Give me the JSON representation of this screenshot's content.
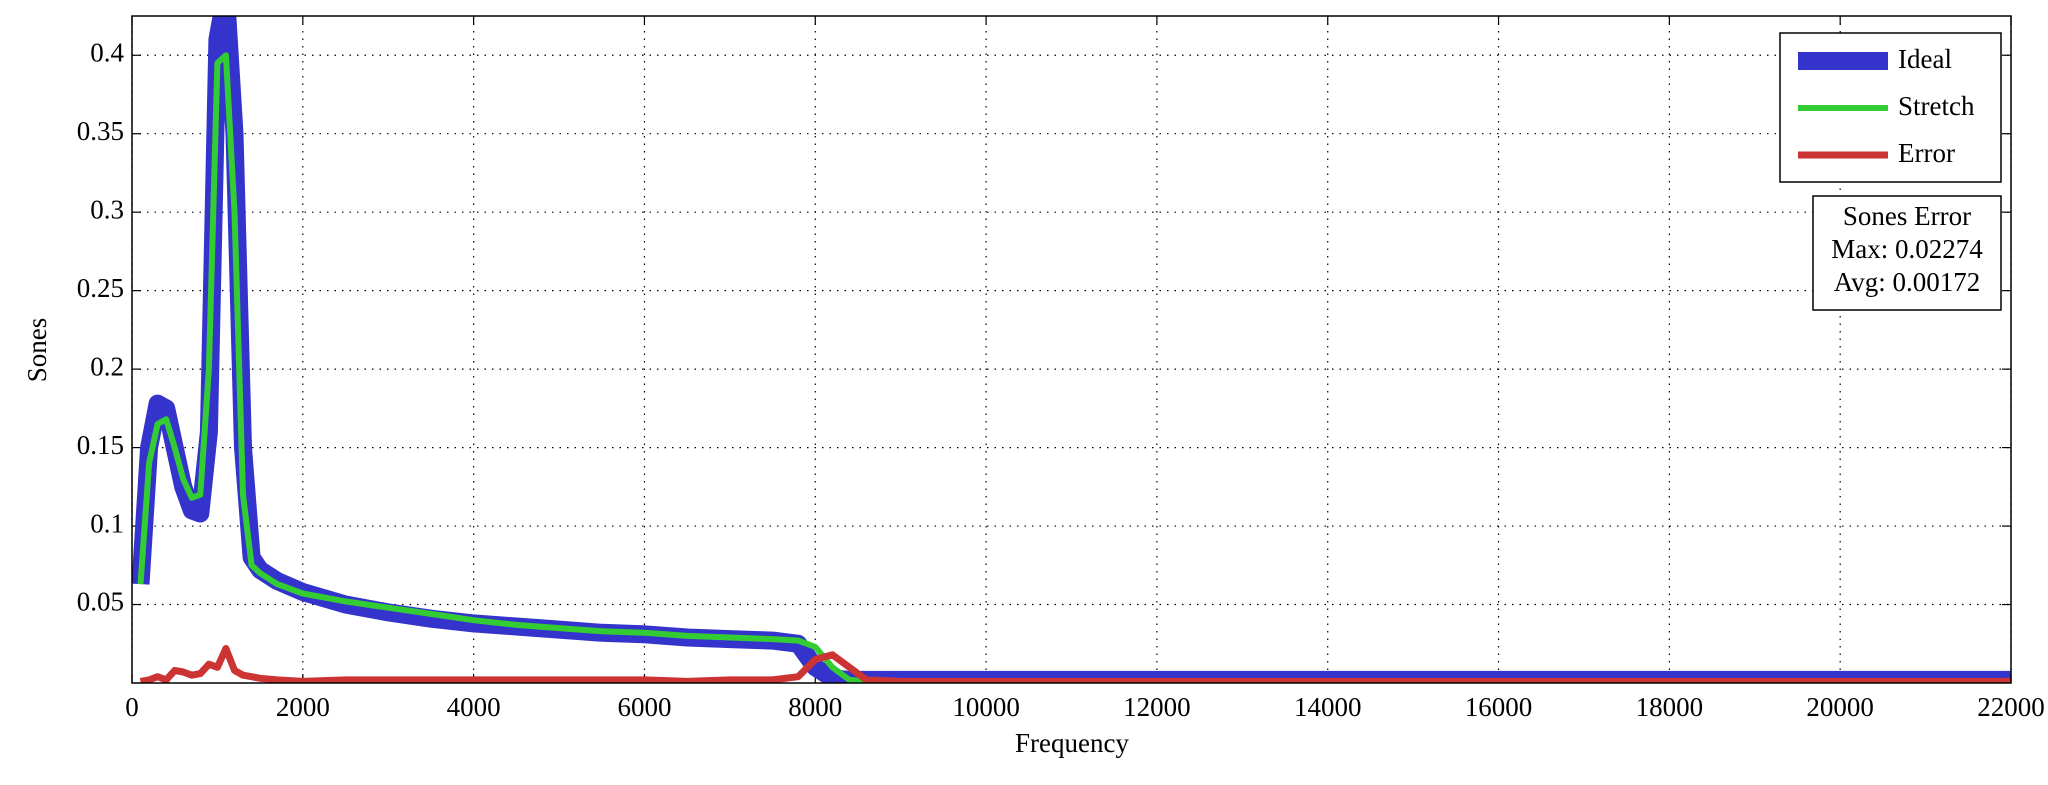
{
  "chart_data": {
    "type": "line",
    "xlabel": "Frequency",
    "ylabel": "Sones",
    "x": [
      100,
      200,
      300,
      400,
      500,
      600,
      700,
      800,
      900,
      1000,
      1100,
      1200,
      1300,
      1400,
      1500,
      1700,
      2000,
      2500,
      3000,
      3500,
      4000,
      4500,
      5000,
      5500,
      6000,
      6500,
      7000,
      7500,
      7800,
      8000,
      8200,
      8400,
      8600,
      9000,
      10000,
      12000,
      14000,
      16000,
      18000,
      20000,
      22000
    ],
    "series": [
      {
        "name": "Ideal",
        "color": "#3434cc",
        "linewidth": 18,
        "values": [
          0.063,
          0.15,
          0.178,
          0.175,
          0.15,
          0.125,
          0.11,
          0.108,
          0.16,
          0.41,
          0.44,
          0.35,
          0.15,
          0.08,
          0.072,
          0.065,
          0.058,
          0.05,
          0.045,
          0.041,
          0.038,
          0.036,
          0.034,
          0.032,
          0.031,
          0.029,
          0.028,
          0.027,
          0.025,
          0.01,
          0.003,
          0.002,
          0.002,
          0.002,
          0.002,
          0.002,
          0.002,
          0.002,
          0.002,
          0.002,
          0.002
        ]
      },
      {
        "name": "Stretch",
        "color": "#33cc33",
        "linewidth": 6,
        "values": [
          0.063,
          0.14,
          0.165,
          0.168,
          0.15,
          0.13,
          0.118,
          0.12,
          0.2,
          0.395,
          0.4,
          0.3,
          0.12,
          0.075,
          0.07,
          0.063,
          0.057,
          0.052,
          0.048,
          0.044,
          0.04,
          0.037,
          0.035,
          0.033,
          0.032,
          0.03,
          0.029,
          0.028,
          0.027,
          0.023,
          0.01,
          0.002,
          0.001,
          0.001,
          0.001,
          0.001,
          0.001,
          0.001,
          0.001,
          0.001,
          0.001
        ]
      },
      {
        "name": "Error",
        "color": "#cc3333",
        "linewidth": 7,
        "values": [
          0.001,
          0.002,
          0.004,
          0.002,
          0.008,
          0.007,
          0.005,
          0.006,
          0.012,
          0.01,
          0.022,
          0.008,
          0.005,
          0.004,
          0.003,
          0.002,
          0.001,
          0.002,
          0.002,
          0.002,
          0.002,
          0.002,
          0.002,
          0.002,
          0.002,
          0.001,
          0.002,
          0.002,
          0.004,
          0.015,
          0.018,
          0.01,
          0.002,
          0.001,
          0.001,
          0.001,
          0.001,
          0.001,
          0.001,
          0.001,
          0.001
        ]
      }
    ],
    "xlim": [
      0,
      22000
    ],
    "xticks": [
      0,
      2000,
      4000,
      6000,
      8000,
      10000,
      12000,
      14000,
      16000,
      18000,
      20000,
      22000
    ],
    "ylim": [
      0,
      0.425
    ],
    "yticks": [
      0.05,
      0.1,
      0.15,
      0.2,
      0.25,
      0.3,
      0.35,
      0.4
    ],
    "grid": true,
    "legend": "upper right",
    "annotation": [
      "Sones Error",
      "Max: 0.02274",
      "Avg: 0.00172"
    ]
  }
}
